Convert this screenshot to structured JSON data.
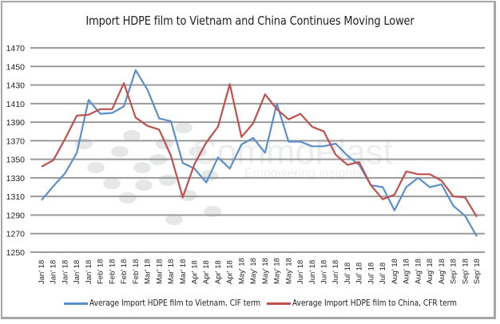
{
  "chart_data": {
    "type": "line",
    "title": "Import HDPE film to Vietnam and China Continues Moving Lower",
    "xlabel": "",
    "ylabel": "",
    "ylim": [
      1250,
      1470
    ],
    "yticks": [
      1250,
      1270,
      1290,
      1310,
      1330,
      1350,
      1370,
      1390,
      1410,
      1430,
      1450,
      1470
    ],
    "grid": true,
    "legend_position": "bottom",
    "categories": [
      "Jan' 18",
      "Jan' 18",
      "Jan' 18",
      "Jan' 18",
      "Jan' 18",
      "Feb' 18",
      "Feb' 18",
      "Feb' 18",
      "Feb' 18",
      "Mar' 18",
      "Mar' 18",
      "Mar' 18",
      "Mar' 18",
      "Apr' 18",
      "Apr' 18",
      "Apr' 18",
      "Apr' 18",
      "May' 18",
      "May' 18",
      "May' 18",
      "May' 18",
      "May' 18",
      "Jun' 18",
      "Jun' 18",
      "Jun' 18",
      "Jun' 18",
      "Jul' 18",
      "Jul' 18",
      "Jul' 18",
      "Jul' 18",
      "Aug' 18",
      "Aug' 18",
      "Aug' 18",
      "Aug' 18",
      "Aug' 18",
      "Sep' 18",
      "Sep' 18",
      "Sep' 18"
    ],
    "series": [
      {
        "name": "Average Import HDPE film to Vietnam, CIF term",
        "color": "#5b8fc9",
        "values": [
          1306,
          1321,
          1335,
          1357,
          1414,
          1399,
          1400,
          1407,
          1446,
          1425,
          1394,
          1391,
          1346,
          1340,
          1325,
          1352,
          1340,
          1366,
          1373,
          1357,
          1410,
          1369,
          1369,
          1364,
          1364,
          1367,
          1354,
          1344,
          1322,
          1320,
          1295,
          1320,
          1330,
          1320,
          1323,
          1300,
          1289,
          1267
        ]
      },
      {
        "name": "Average Import HDPE film to China, CFR term",
        "color": "#c0504d",
        "values": [
          1342,
          1349,
          1372,
          1397,
          1398,
          1404,
          1404,
          1432,
          1395,
          1386,
          1382,
          1354,
          1309,
          1345,
          1368,
          1385,
          1431,
          1374,
          1389,
          1420,
          1404,
          1393,
          1399,
          1385,
          1380,
          1355,
          1344,
          1347,
          1322,
          1307,
          1312,
          1337,
          1334,
          1334,
          1327,
          1310,
          1309,
          1288
        ]
      }
    ]
  },
  "watermark": {
    "brand": "CommoPlast",
    "tagline": "Empowering insights"
  }
}
